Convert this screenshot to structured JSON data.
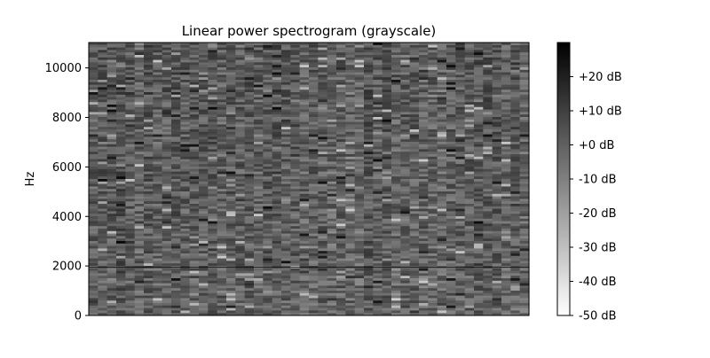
{
  "chart_data": {
    "type": "heatmap",
    "title": "Linear power spectrogram (grayscale)",
    "xlabel": "",
    "ylabel": "Hz",
    "x_axis_ticks": "none",
    "ylim": [
      0,
      11025
    ],
    "yticks": [
      0,
      2000,
      4000,
      6000,
      8000,
      10000
    ],
    "yticklabels": [
      "0",
      "2000",
      "4000",
      "6000",
      "8000",
      "10000"
    ],
    "colormap": "gray_r",
    "colorbar": {
      "range_db": [
        -50,
        30
      ],
      "ticks": [
        20,
        10,
        0,
        -10,
        -20,
        -30,
        -40,
        -50
      ],
      "ticklabels": [
        "+20 dB",
        "+10 dB",
        "+0 dB",
        "-10 dB",
        "-20 dB",
        "-30 dB",
        "-40 dB",
        "-50 dB"
      ],
      "placement": "right"
    },
    "features": {
      "dominant_level_db": [
        0,
        15
      ],
      "narrowband_line_hz": 1950,
      "character": "broadband noise with horizontal streaking; slightly darker toward top and right"
    },
    "grid": false
  }
}
